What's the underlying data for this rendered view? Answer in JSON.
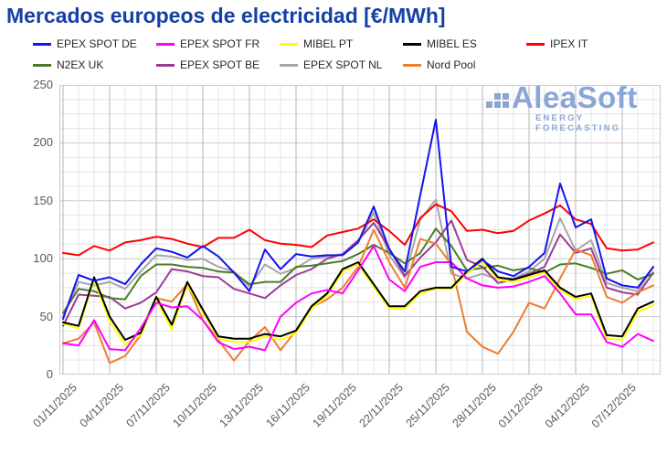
{
  "title": "Mercados europeos de electricidad [€/MWh]",
  "watermark": {
    "name": "AleaSoft",
    "subtitle": "ENERGY FORECASTING",
    "color": "#8ba5d4"
  },
  "axis": {
    "y_tick_labels": [
      "0",
      "50",
      "100",
      "150",
      "200",
      "250"
    ]
  },
  "chart_data": {
    "type": "line",
    "title": "Mercados europeos de electricidad [€/MWh]",
    "xlabel": "",
    "ylabel": "",
    "ylim": [
      0,
      250
    ],
    "y_major_step": 50,
    "y_minor_step": 12.5,
    "grid": "both",
    "legend_position": "top",
    "x": [
      "01/11/2025",
      "02/11/2025",
      "03/11/2025",
      "04/11/2025",
      "05/11/2025",
      "06/11/2025",
      "07/11/2025",
      "08/11/2025",
      "09/11/2025",
      "10/11/2025",
      "11/11/2025",
      "12/11/2025",
      "13/11/2025",
      "14/11/2025",
      "15/11/2025",
      "16/11/2025",
      "17/11/2025",
      "18/11/2025",
      "19/11/2025",
      "20/11/2025",
      "21/11/2025",
      "22/11/2025",
      "23/11/2025",
      "24/11/2025",
      "25/11/2025",
      "26/11/2025",
      "27/11/2025",
      "28/11/2025",
      "29/11/2025",
      "30/11/2025",
      "01/12/2025",
      "02/12/2025",
      "03/12/2025",
      "04/12/2025",
      "05/12/2025",
      "06/12/2025",
      "07/12/2025",
      "08/12/2025",
      "09/12/2025"
    ],
    "x_tick_every": 3,
    "x_tick_labels": [
      "01/11/2025",
      "04/11/2025",
      "07/11/2025",
      "10/11/2025",
      "13/11/2025",
      "16/11/2025",
      "19/11/2025",
      "22/11/2025",
      "25/11/2025",
      "28/11/2025",
      "01/12/2025",
      "04/12/2025",
      "07/12/2025"
    ],
    "draw_order": [
      "EPEX SPOT NL",
      "EPEX SPOT BE",
      "N2EX UK",
      "Nord Pool",
      "MIBEL PT",
      "MIBEL ES",
      "EPEX SPOT FR",
      "IPEX IT",
      "EPEX SPOT DE"
    ],
    "series": [
      {
        "name": "EPEX SPOT DE",
        "color": "#1414f0",
        "values": [
          48,
          86,
          81,
          84,
          78,
          95,
          109,
          106,
          101,
          111,
          102,
          88,
          72,
          108,
          91,
          104,
          102,
          103,
          103,
          114,
          145,
          108,
          89,
          155,
          220,
          93,
          89,
          99,
          89,
          85,
          93,
          105,
          165,
          127,
          134,
          83,
          77,
          75,
          93
        ]
      },
      {
        "name": "EPEX SPOT FR",
        "color": "#ff00ff",
        "values": [
          27,
          25,
          47,
          22,
          21,
          40,
          62,
          58,
          59,
          47,
          28,
          22,
          24,
          21,
          50,
          62,
          70,
          73,
          70,
          90,
          111,
          82,
          72,
          93,
          97,
          97,
          83,
          77,
          75,
          76,
          80,
          85,
          70,
          52,
          52,
          28,
          24,
          35,
          29
        ]
      },
      {
        "name": "MIBEL PT",
        "color": "#ffff00",
        "values": [
          44,
          40,
          82,
          46,
          26,
          34,
          65,
          39,
          78,
          54,
          31,
          28,
          28,
          33,
          30,
          36,
          57,
          68,
          89,
          95,
          76,
          57,
          57,
          70,
          74,
          74,
          87,
          98,
          82,
          80,
          84,
          88,
          73,
          65,
          68,
          31,
          30,
          54,
          60
        ]
      },
      {
        "name": "MIBEL ES",
        "color": "#000000",
        "values": [
          45,
          42,
          84,
          50,
          30,
          36,
          67,
          43,
          80,
          56,
          33,
          31,
          31,
          35,
          33,
          38,
          59,
          70,
          91,
          97,
          78,
          59,
          59,
          72,
          75,
          75,
          89,
          100,
          84,
          82,
          86,
          90,
          75,
          67,
          70,
          34,
          33,
          57,
          63
        ]
      },
      {
        "name": "IPEX IT",
        "color": "#ff0000",
        "values": [
          105,
          103,
          111,
          107,
          114,
          116,
          119,
          117,
          113,
          110,
          118,
          118,
          125,
          116,
          113,
          112,
          110,
          120,
          123,
          126,
          134,
          124,
          112,
          135,
          147,
          141,
          124,
          125,
          122,
          124,
          133,
          139,
          146,
          134,
          130,
          109,
          107,
          108,
          114
        ]
      },
      {
        "name": "N2EX UK",
        "color": "#4a7d2a",
        "values": [
          53,
          74,
          72,
          66,
          65,
          85,
          95,
          95,
          93,
          92,
          89,
          88,
          78,
          80,
          80,
          93,
          94,
          96,
          98,
          104,
          112,
          105,
          96,
          105,
          126,
          111,
          90,
          92,
          94,
          90,
          92,
          88,
          95,
          96,
          92,
          87,
          90,
          82,
          87
        ]
      },
      {
        "name": "EPEX SPOT BE",
        "color": "#9e3a96",
        "values": [
          42,
          69,
          68,
          67,
          57,
          62,
          71,
          91,
          89,
          85,
          84,
          74,
          70,
          66,
          77,
          86,
          91,
          100,
          104,
          116,
          131,
          109,
          85,
          101,
          114,
          133,
          99,
          93,
          79,
          82,
          87,
          93,
          121,
          105,
          109,
          75,
          71,
          69,
          88
        ]
      },
      {
        "name": "EPEX SPOT NL",
        "color": "#a6a6a6",
        "values": [
          50,
          80,
          77,
          80,
          74,
          89,
          103,
          102,
          99,
          100,
          93,
          89,
          76,
          95,
          87,
          92,
          100,
          102,
          104,
          114,
          140,
          103,
          84,
          134,
          151,
          87,
          83,
          87,
          82,
          83,
          89,
          100,
          135,
          107,
          116,
          79,
          75,
          72,
          93
        ]
      },
      {
        "name": "Nord Pool",
        "color": "#ed7d31",
        "values": [
          27,
          31,
          45,
          10,
          16,
          34,
          66,
          63,
          78,
          47,
          30,
          12,
          29,
          41,
          21,
          38,
          58,
          65,
          75,
          93,
          125,
          97,
          75,
          117,
          113,
          95,
          37,
          24,
          18,
          37,
          62,
          57,
          83,
          108,
          103,
          67,
          62,
          71,
          77
        ]
      }
    ]
  }
}
